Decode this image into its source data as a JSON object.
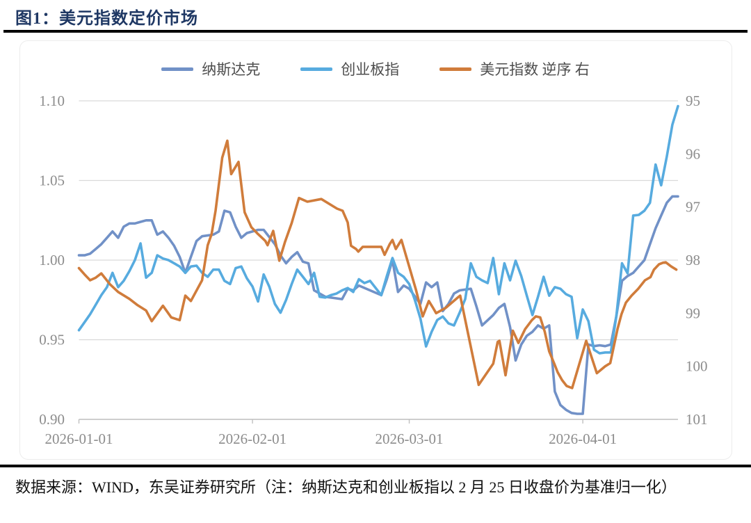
{
  "figure": {
    "title": "图1：美元指数定价市场"
  },
  "legend": [
    {
      "key": "nasdaq",
      "label": "纳斯达克",
      "color": "#7191c7"
    },
    {
      "key": "chinext",
      "label": "创业板指",
      "color": "#57abdf"
    },
    {
      "key": "usd-index",
      "label": "美元指数 逆序 右",
      "color": "#d07c3b"
    }
  ],
  "footer": {
    "source_note": "数据来源：WIND，东吴证券研究所（注：纳斯达克和创业板指以 2 月 25 日收盘价为基准归一化）"
  },
  "colors": {
    "title": "#1f3864",
    "gridline": "#d9d9d9",
    "axis_line": "#c0c0c0",
    "axis_label": "#8c8c8c",
    "legend_label": "#4d4d4d",
    "rule": "#000000"
  },
  "chart_data": {
    "type": "line",
    "title": "",
    "grid": "horizontal",
    "legend_position": "top",
    "x_axis": {
      "labels": [
        "2026-01-01",
        "2026-02-01",
        "2026-03-01",
        "2026-04-01"
      ],
      "tick_days": [
        0,
        31,
        59,
        90
      ],
      "domain_days": [
        0,
        107
      ]
    },
    "y_left": {
      "tick_labels": [
        "1.10",
        "1.05",
        "1.00",
        "0.95",
        "0.90"
      ],
      "range": [
        0.9,
        1.1
      ]
    },
    "y_right": {
      "tick_labels": [
        "95",
        "96",
        "97",
        "98",
        "99",
        "100",
        "101"
      ],
      "range": [
        95,
        101
      ],
      "reversed": true
    },
    "series": [
      {
        "name": "纳斯达克",
        "axis": "left",
        "color": "#7191c7",
        "points": [
          [
            0,
            1.003
          ],
          [
            1,
            1.003
          ],
          [
            2,
            1.004
          ],
          [
            3,
            1.007
          ],
          [
            4,
            1.01
          ],
          [
            5,
            1.014
          ],
          [
            6,
            1.018
          ],
          [
            7,
            1.014
          ],
          [
            8,
            1.021
          ],
          [
            9,
            1.023
          ],
          [
            10,
            1.023
          ],
          [
            11,
            1.024
          ],
          [
            12,
            1.025
          ],
          [
            13,
            1.025
          ],
          [
            14,
            1.016
          ],
          [
            15,
            1.018
          ],
          [
            16,
            1.014
          ],
          [
            17,
            1.009
          ],
          [
            18,
            1.002
          ],
          [
            19,
            0.992
          ],
          [
            20,
            1.002
          ],
          [
            21,
            1.012
          ],
          [
            22,
            1.015
          ],
          [
            24,
            1.016
          ],
          [
            25,
            1.018
          ],
          [
            26,
            1.031
          ],
          [
            27,
            1.03
          ],
          [
            28,
            1.021
          ],
          [
            29,
            1.014
          ],
          [
            30,
            1.017
          ],
          [
            32,
            1.019
          ],
          [
            33,
            1.019
          ],
          [
            35,
            1.01
          ],
          [
            36,
            1.003
          ],
          [
            37,
            0.998
          ],
          [
            38,
            1.002
          ],
          [
            39,
            1.005
          ],
          [
            40,
            0.999
          ],
          [
            41,
            0.998
          ],
          [
            42,
            0.981
          ],
          [
            43,
            0.979
          ],
          [
            44,
            0.977
          ],
          [
            46,
            0.976
          ],
          [
            47,
            0.9755
          ],
          [
            48,
            0.982
          ],
          [
            49,
            0.981
          ],
          [
            50,
            0.984
          ],
          [
            52,
            0.981
          ],
          [
            54,
            0.978
          ],
          [
            55,
            0.988
          ],
          [
            56,
            1.0
          ],
          [
            57,
            0.98
          ],
          [
            58,
            0.984
          ],
          [
            59,
            0.982
          ],
          [
            61,
            0.9725
          ],
          [
            62,
            0.986
          ],
          [
            63,
            0.983
          ],
          [
            64,
            0.986
          ],
          [
            65,
            0.968
          ],
          [
            66,
            0.9725
          ],
          [
            67,
            0.979
          ],
          [
            68,
            0.981
          ],
          [
            70,
            0.982
          ],
          [
            71,
            0.971
          ],
          [
            72,
            0.959
          ],
          [
            74,
            0.9655
          ],
          [
            75,
            0.97
          ],
          [
            76,
            0.9725
          ],
          [
            77,
            0.958
          ],
          [
            78,
            0.937
          ],
          [
            79,
            0.947
          ],
          [
            80,
            0.9525
          ],
          [
            81,
            0.955
          ],
          [
            82,
            0.959
          ],
          [
            83,
            0.957
          ],
          [
            84,
            0.959
          ],
          [
            85,
            0.9175
          ],
          [
            86,
            0.909
          ],
          [
            87,
            0.906
          ],
          [
            88,
            0.904
          ],
          [
            89,
            0.9035
          ],
          [
            90,
            0.9035
          ],
          [
            91,
            0.947
          ],
          [
            92,
            0.946
          ],
          [
            93,
            0.9465
          ],
          [
            94,
            0.946
          ],
          [
            95,
            0.947
          ],
          [
            96,
            0.965
          ],
          [
            97,
            0.987
          ],
          [
            98,
            0.99
          ],
          [
            99,
            0.992
          ],
          [
            100,
            0.996
          ],
          [
            101,
            1.0
          ],
          [
            102,
            1.01
          ],
          [
            103,
            1.02
          ],
          [
            104,
            1.028
          ],
          [
            105,
            1.036
          ],
          [
            106,
            1.04
          ],
          [
            107,
            1.04
          ]
        ]
      },
      {
        "name": "创业板指",
        "axis": "left",
        "color": "#57abdf",
        "points": [
          [
            0,
            0.956
          ],
          [
            1,
            0.961
          ],
          [
            2,
            0.966
          ],
          [
            3,
            0.972
          ],
          [
            4,
            0.978
          ],
          [
            5,
            0.983
          ],
          [
            6,
            0.992
          ],
          [
            7,
            0.983
          ],
          [
            8,
            0.987
          ],
          [
            9,
            0.993
          ],
          [
            10,
            1.0
          ],
          [
            11,
            1.0105
          ],
          [
            12,
            0.989
          ],
          [
            13,
            0.992
          ],
          [
            14,
            1.003
          ],
          [
            15,
            1.001
          ],
          [
            16,
            1.0
          ],
          [
            17,
            0.998
          ],
          [
            18,
            0.996
          ],
          [
            19,
            0.992
          ],
          [
            20,
            0.996
          ],
          [
            21,
            0.9965
          ],
          [
            22,
            0.992
          ],
          [
            23,
            0.9895
          ],
          [
            24,
            0.994
          ],
          [
            25,
            0.994
          ],
          [
            26,
            0.987
          ],
          [
            27,
            0.985
          ],
          [
            28,
            0.995
          ],
          [
            29,
            0.996
          ],
          [
            30,
            0.9886
          ],
          [
            31,
            0.9834
          ],
          [
            32,
            0.974
          ],
          [
            33,
            0.991
          ],
          [
            34,
            0.9834
          ],
          [
            35,
            0.9725
          ],
          [
            36,
            0.967
          ],
          [
            37,
            0.975
          ],
          [
            38,
            0.985
          ],
          [
            39,
            0.994
          ],
          [
            40,
            0.9895
          ],
          [
            41,
            0.985
          ],
          [
            42,
            0.992
          ],
          [
            43,
            0.977
          ],
          [
            44,
            0.9765
          ],
          [
            45,
            0.978
          ],
          [
            46,
            0.979
          ],
          [
            47,
            0.981
          ],
          [
            48,
            0.9825
          ],
          [
            49,
            0.98
          ],
          [
            50,
            0.988
          ],
          [
            51,
            0.9856
          ],
          [
            52,
            0.987
          ],
          [
            54,
            0.978
          ],
          [
            55,
            0.99
          ],
          [
            56,
            1.0013
          ],
          [
            57,
            0.992
          ],
          [
            58,
            0.9895
          ],
          [
            59,
            0.985
          ],
          [
            60,
            0.975
          ],
          [
            61,
            0.9633
          ],
          [
            62,
            0.9458
          ],
          [
            63,
            0.955
          ],
          [
            64,
            0.9624
          ],
          [
            65,
            0.9646
          ],
          [
            66,
            0.9603
          ],
          [
            67,
            0.959
          ],
          [
            68,
            0.967
          ],
          [
            69,
            0.9755
          ],
          [
            70,
            0.998
          ],
          [
            71,
            0.9895
          ],
          [
            72,
            0.9873
          ],
          [
            73,
            0.9856
          ],
          [
            74,
            1.0013
          ],
          [
            75,
            0.9786
          ],
          [
            76,
            0.998
          ],
          [
            77,
            0.9873
          ],
          [
            78,
            0.9996
          ],
          [
            79,
            0.99
          ],
          [
            80,
            0.9777
          ],
          [
            81,
            0.9655
          ],
          [
            82,
            0.977
          ],
          [
            83,
            0.9895
          ],
          [
            84,
            0.9777
          ],
          [
            85,
            0.983
          ],
          [
            86,
            0.982
          ],
          [
            87,
            0.9786
          ],
          [
            88,
            0.977
          ],
          [
            89,
            0.951
          ],
          [
            90,
            0.969
          ],
          [
            91,
            0.9616
          ],
          [
            92,
            0.9437
          ],
          [
            93,
            0.9415
          ],
          [
            94,
            0.942
          ],
          [
            95,
            0.942
          ],
          [
            96,
            0.965
          ],
          [
            97,
            0.998
          ],
          [
            98,
            0.9917
          ],
          [
            99,
            1.028
          ],
          [
            100,
            1.0284
          ],
          [
            101,
            1.031
          ],
          [
            102,
            1.036
          ],
          [
            103,
            1.06
          ],
          [
            104,
            1.047
          ],
          [
            105,
            1.065
          ],
          [
            106,
            1.085
          ],
          [
            107,
            1.0967
          ]
        ]
      },
      {
        "name": "美元指数",
        "axis": "right",
        "color": "#d07c3b",
        "points": [
          [
            0,
            98.15
          ],
          [
            1,
            98.27
          ],
          [
            2,
            98.38
          ],
          [
            3,
            98.33
          ],
          [
            4,
            98.25
          ],
          [
            5.5,
            98.45
          ],
          [
            7,
            98.6
          ],
          [
            9,
            98.73
          ],
          [
            10.5,
            98.85
          ],
          [
            12,
            98.95
          ],
          [
            13,
            99.15
          ],
          [
            15,
            98.86
          ],
          [
            16.5,
            99.08
          ],
          [
            18,
            99.13
          ],
          [
            19,
            98.67
          ],
          [
            20,
            98.77
          ],
          [
            22,
            98.38
          ],
          [
            23,
            97.72
          ],
          [
            23.7,
            97.51
          ],
          [
            24.4,
            97.07
          ],
          [
            25.6,
            96.07
          ],
          [
            26.5,
            95.75
          ],
          [
            27.2,
            96.38
          ],
          [
            28.5,
            96.15
          ],
          [
            29.6,
            97.1
          ],
          [
            30.8,
            97.38
          ],
          [
            32,
            97.51
          ],
          [
            33.3,
            97.64
          ],
          [
            33.7,
            97.72
          ],
          [
            34.7,
            97.45
          ],
          [
            35.8,
            98.01
          ],
          [
            36.8,
            97.66
          ],
          [
            38,
            97.3
          ],
          [
            39.3,
            96.83
          ],
          [
            40.8,
            96.9
          ],
          [
            43.3,
            96.85
          ],
          [
            46.1,
            97.03
          ],
          [
            47.1,
            97.07
          ],
          [
            48,
            97.29
          ],
          [
            48.6,
            97.73
          ],
          [
            49.5,
            97.79
          ],
          [
            49.9,
            97.84
          ],
          [
            50.7,
            97.75
          ],
          [
            54,
            97.75
          ],
          [
            54.6,
            97.9
          ],
          [
            55.5,
            97.7
          ],
          [
            56,
            97.62
          ],
          [
            56.6,
            97.79
          ],
          [
            57.6,
            97.62
          ],
          [
            60.2,
            98.56
          ],
          [
            61.4,
            99.06
          ],
          [
            62.5,
            98.77
          ],
          [
            63.2,
            98.89
          ],
          [
            63.8,
            99.0
          ],
          [
            65.5,
            98.9
          ],
          [
            67.6,
            98.71
          ],
          [
            68.1,
            98.67
          ],
          [
            71.4,
            100.35
          ],
          [
            74,
            99.95
          ],
          [
            74.8,
            99.54
          ],
          [
            75.1,
            99.52
          ],
          [
            76.2,
            100.17
          ],
          [
            77.5,
            99.33
          ],
          [
            78.5,
            99.56
          ],
          [
            79.7,
            99.3
          ],
          [
            80.9,
            99.13
          ],
          [
            81.6,
            99.06
          ],
          [
            82.4,
            99.08
          ],
          [
            83.2,
            99.35
          ],
          [
            84,
            99.72
          ],
          [
            84.9,
            99.95
          ],
          [
            85.5,
            100.11
          ],
          [
            86.3,
            100.26
          ],
          [
            87.1,
            100.37
          ],
          [
            88.1,
            100.41
          ],
          [
            90.6,
            99.52
          ],
          [
            92.5,
            100.13
          ],
          [
            94,
            100.0
          ],
          [
            94.9,
            99.94
          ],
          [
            96.2,
            99.3
          ],
          [
            96.9,
            99.02
          ],
          [
            97.7,
            98.8
          ],
          [
            98.7,
            98.67
          ],
          [
            99.9,
            98.54
          ],
          [
            101.1,
            98.38
          ],
          [
            102.1,
            98.32
          ],
          [
            102.7,
            98.18
          ],
          [
            103.6,
            98.08
          ],
          [
            104.3,
            98.05
          ],
          [
            104.8,
            98.04
          ],
          [
            105.8,
            98.12
          ],
          [
            106.7,
            98.18
          ]
        ]
      }
    ]
  }
}
